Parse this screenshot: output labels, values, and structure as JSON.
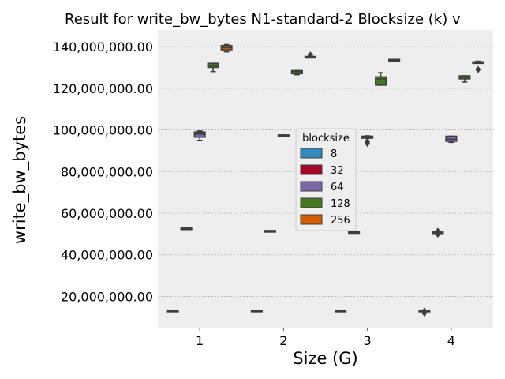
{
  "chart_data": {
    "type": "box",
    "title": "Result for write_bw_bytes N1-standard-2 Blocksize (k) v",
    "xlabel": "Size (G)",
    "ylabel": "write_bw_bytes",
    "categories": [
      "1",
      "2",
      "3",
      "4"
    ],
    "ylim": [
      5000000,
      148000000
    ],
    "yticks": [
      20000000,
      40000000,
      60000000,
      80000000,
      100000000,
      120000000,
      140000000
    ],
    "ytick_labels": [
      "20,000,000.00",
      "40,000,000.00",
      "60,000,000.00",
      "80,000,000.00",
      "100,000,000.00",
      "120,000,000.00",
      "140,000,000.00"
    ],
    "grid": true,
    "legend": {
      "title": "blocksize",
      "position": "center"
    },
    "series": [
      {
        "name": "8",
        "color": "#348ABD",
        "boxes": [
          {
            "min": 13000000,
            "q1": 13000000,
            "median": 13000000,
            "q3": 13000000,
            "max": 13000000,
            "outliers": []
          },
          {
            "min": 13000000,
            "q1": 13000000,
            "median": 13000000,
            "q3": 13000000,
            "max": 13000000,
            "outliers": []
          },
          {
            "min": 13000000,
            "q1": 13000000,
            "median": 13000000,
            "q3": 13000000,
            "max": 13000000,
            "outliers": []
          },
          {
            "min": 13000000,
            "q1": 13000000,
            "median": 13000000,
            "q3": 13000000,
            "max": 13000000,
            "outliers": [
              13000000,
              12000000
            ]
          }
        ]
      },
      {
        "name": "32",
        "color": "#A60628",
        "boxes": [
          {
            "min": 52500000,
            "q1": 52500000,
            "median": 52500000,
            "q3": 52500000,
            "max": 52500000,
            "outliers": []
          },
          {
            "min": 51300000,
            "q1": 51300000,
            "median": 51300000,
            "q3": 51300000,
            "max": 51300000,
            "outliers": []
          },
          {
            "min": 50700000,
            "q1": 50700000,
            "median": 50700000,
            "q3": 50700000,
            "max": 50700000,
            "outliers": []
          },
          {
            "min": 50600000,
            "q1": 50600000,
            "median": 50600000,
            "q3": 50600000,
            "max": 50600000,
            "outliers": [
              51300000,
              49900000
            ]
          }
        ]
      },
      {
        "name": "64",
        "color": "#7A68A6",
        "boxes": [
          {
            "min": 95000000,
            "q1": 96500000,
            "median": 98000000,
            "q3": 99000000,
            "max": 99500000,
            "outliers": []
          },
          {
            "min": 96800000,
            "q1": 96800000,
            "median": 97300000,
            "q3": 97600000,
            "max": 97600000,
            "outliers": []
          },
          {
            "min": 96000000,
            "q1": 96000000,
            "median": 96400000,
            "q3": 97000000,
            "max": 97200000,
            "outliers": [
              94500000,
              93500000
            ]
          },
          {
            "min": 94000000,
            "q1": 94500000,
            "median": 95500000,
            "q3": 97000000,
            "max": 97000000,
            "outliers": []
          }
        ]
      },
      {
        "name": "128",
        "color": "#467821",
        "boxes": [
          {
            "min": 128000000,
            "q1": 130000000,
            "median": 131000000,
            "q3": 132000000,
            "max": 132000000,
            "outliers": []
          },
          {
            "min": 126500000,
            "q1": 127000000,
            "median": 128000000,
            "q3": 128500000,
            "max": 128500000,
            "outliers": []
          },
          {
            "min": 121500000,
            "q1": 121500000,
            "median": 124500000,
            "q3": 125500000,
            "max": 127500000,
            "outliers": []
          },
          {
            "min": 123000000,
            "q1": 124500000,
            "median": 125300000,
            "q3": 126000000,
            "max": 126000000,
            "outliers": []
          }
        ]
      },
      {
        "name": "256",
        "color": "#D55E00",
        "boxes": [
          {
            "min": 137500000,
            "q1": 138500000,
            "median": 139500000,
            "q3": 140500000,
            "max": 141000000,
            "outliers": []
          },
          {
            "min": 134800000,
            "q1": 134800000,
            "median": 135000000,
            "q3": 135300000,
            "max": 135300000,
            "outliers": [
              136000000
            ]
          },
          {
            "min": 133500000,
            "q1": 133500000,
            "median": 133500000,
            "q3": 133500000,
            "max": 133500000,
            "outliers": []
          },
          {
            "min": 132200000,
            "q1": 132300000,
            "median": 132500000,
            "q3": 132700000,
            "max": 133000000,
            "outliers": [
              129000000
            ]
          }
        ]
      }
    ]
  }
}
